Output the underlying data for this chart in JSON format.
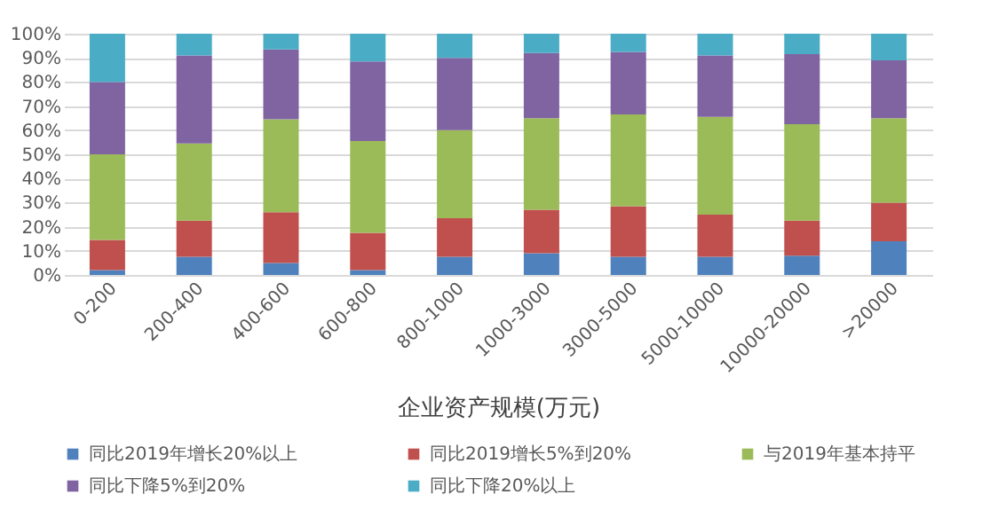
{
  "chart_data": {
    "type": "bar",
    "stacked": true,
    "xlabel": "企业资产规模(万元)",
    "categories": [
      "0-200",
      "200-400",
      "400-600",
      "600-800",
      "800-1000",
      "1000-3000",
      "3000-5000",
      "5000-10000",
      "10000-20000",
      ">20000"
    ],
    "series": [
      {
        "name": "同比2019年增长20%以上",
        "color": "#4f81bd",
        "values": [
          2,
          7.5,
          5,
          2,
          7.5,
          9,
          7.5,
          7.5,
          8,
          14
        ]
      },
      {
        "name": "同比2019增长5%到20%",
        "color": "#c0504d",
        "values": [
          12.5,
          15,
          21,
          15.5,
          16,
          18,
          21,
          17.5,
          14.5,
          16
        ]
      },
      {
        "name": "与2019年基本持平",
        "color": "#9bbb59",
        "values": [
          35.5,
          32,
          38.5,
          38,
          36.5,
          38,
          38,
          40.5,
          40,
          35
        ]
      },
      {
        "name": "同比下降5%到20%",
        "color": "#8064a2",
        "values": [
          30,
          36.5,
          29,
          33,
          30,
          27,
          26,
          25.5,
          29,
          24
        ]
      },
      {
        "name": "同比下降20%以上",
        "color": "#4bacc6",
        "values": [
          20,
          9,
          6.5,
          11.5,
          10,
          8,
          7.5,
          9,
          8.5,
          11
        ]
      }
    ],
    "ylim": [
      0,
      100
    ],
    "yticks": [
      {
        "value": 0,
        "label": "0%"
      },
      {
        "value": 10,
        "label": "10%"
      },
      {
        "value": 20,
        "label": "20%"
      },
      {
        "value": 30,
        "label": "30%"
      },
      {
        "value": 40,
        "label": "40%"
      },
      {
        "value": 50,
        "label": "50%"
      },
      {
        "value": 60,
        "label": "60%"
      },
      {
        "value": 70,
        "label": "70%"
      },
      {
        "value": 80,
        "label": "80%"
      },
      {
        "value": 90,
        "label": "90%"
      },
      {
        "value": 100,
        "label": "100%"
      }
    ],
    "grid": "y",
    "legend": "bottom"
  }
}
